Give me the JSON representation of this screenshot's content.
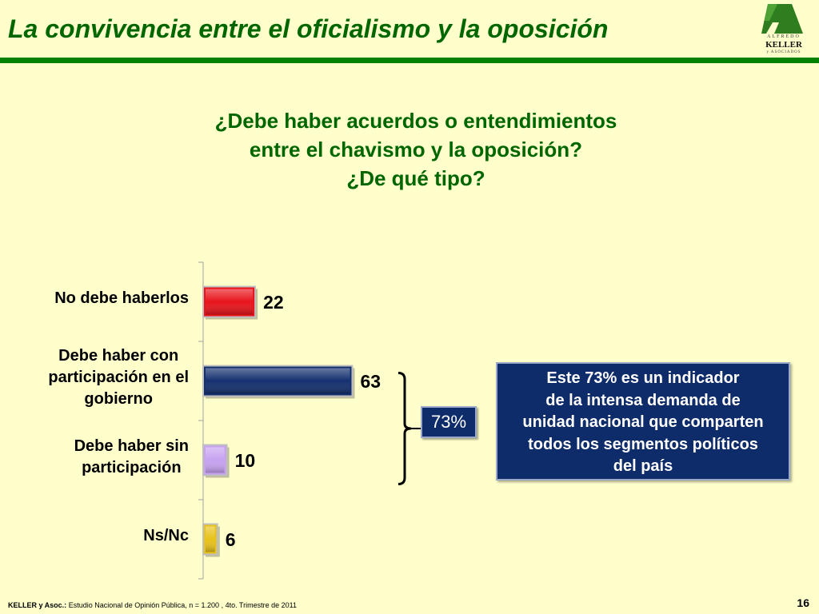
{
  "header": {
    "title": "La convivencia entre el oficialismo y la oposición",
    "logo": {
      "line1": "ALFREDO",
      "line2": "KELLER",
      "line3": "y ASOCIADOS"
    }
  },
  "question": {
    "line1": "¿Debe haber acuerdos o entendimientos",
    "line2": "entre el chavismo y la oposición?",
    "line3": "¿De qué tipo?"
  },
  "chart_data": {
    "type": "bar",
    "orientation": "horizontal",
    "categories": [
      "No debe haberlos",
      "Debe haber con\nparticipación en el\ngobierno",
      "Debe haber sin\nparticipación",
      "Ns/Nc"
    ],
    "values": [
      22,
      63,
      10,
      6
    ],
    "bar_colors": [
      "#E8141B",
      "#14306F",
      "#C7A2F0",
      "#E7C21B"
    ],
    "xlim": [
      0,
      100
    ],
    "grid": false,
    "bracket": {
      "label": "73%",
      "covers": [
        1,
        2
      ]
    }
  },
  "callout": {
    "lines": [
      "Este 73% es un indicador",
      "de la intensa demanda de",
      "unidad nacional que comparten",
      "todos los segmentos políticos",
      "del país"
    ]
  },
  "footer": {
    "source_bold": "KELLER y Asoc.:",
    "source_text": " Estudio Nacional de Opinión Pública, n = 1.200 , 4to. Trimestre de 2011",
    "page_number": "16"
  },
  "colors": {
    "title_green": "#006600",
    "rule_green": "#008000",
    "background": "#FFFFCC",
    "navy": "#0E2B6A"
  }
}
